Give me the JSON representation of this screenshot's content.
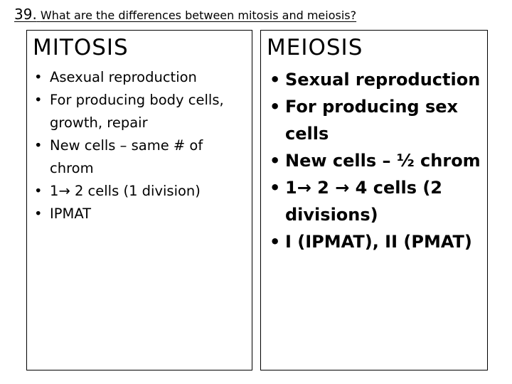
{
  "question": {
    "number": "39.",
    "text": "What are the differences between mitosis and meiosis?"
  },
  "mitosis": {
    "heading": "MITOSIS",
    "items": [
      "Asexual reproduction",
      "For producing body cells, growth, repair",
      "New cells – same # of chrom",
      "1→ 2 cells (1 division)",
      "IPMAT"
    ]
  },
  "meiosis": {
    "heading": "MEIOSIS",
    "items": [
      "Sexual reproduction",
      "For producing sex cells",
      "New cells – ½ chrom",
      "1→ 2 → 4 cells (2 divisions)",
      "I (IPMAT), II (PMAT)"
    ]
  },
  "bullet_char": "•"
}
